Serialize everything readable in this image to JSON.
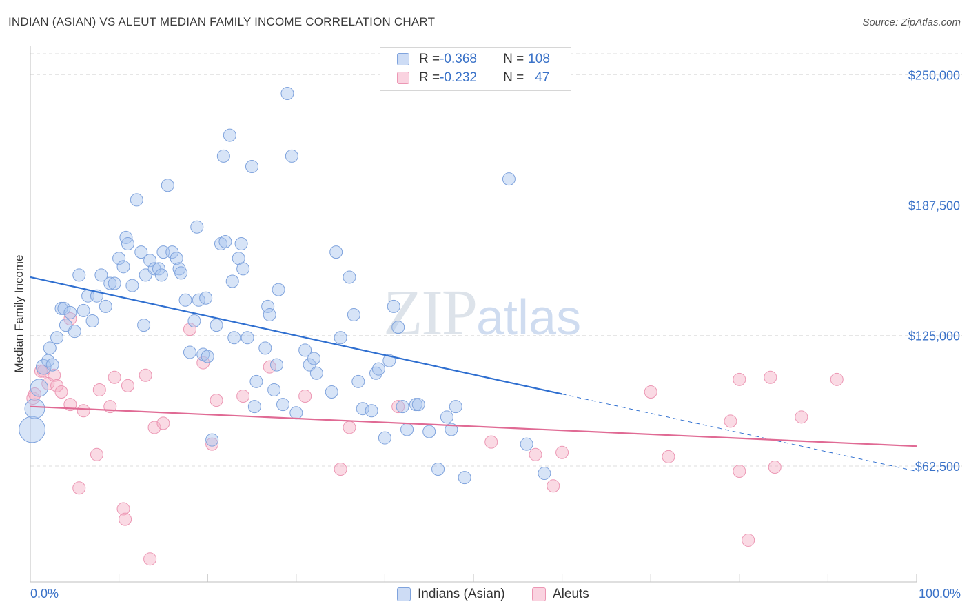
{
  "title": "INDIAN (ASIAN) VS ALEUT MEDIAN FAMILY INCOME CORRELATION CHART",
  "source": "Source: ZipAtlas.com",
  "watermark": {
    "main": "ZIP",
    "sub": "atlas"
  },
  "legend": {
    "rows": [
      {
        "r_label": "R = ",
        "r_value": "-0.368",
        "n_label": "N = ",
        "n_value": "108",
        "color": "#a7c4ee"
      },
      {
        "r_label": "R = ",
        "r_value": "-0.232",
        "n_label": "N = ",
        "n_value": "47",
        "color": "#f4aec4"
      }
    ]
  },
  "bottom_legend": [
    {
      "label": "Indians (Asian)",
      "color": "#a7c4ee"
    },
    {
      "label": "Aleuts",
      "color": "#f4aec4"
    }
  ],
  "colors": {
    "blue": "#3a72c8",
    "pink": "#e06a94",
    "blue_fill": "#a7c4ee",
    "pink_fill": "#f4aec4",
    "grid": "#dddddd"
  },
  "chart_data": {
    "type": "scatter",
    "title": "INDIAN (ASIAN) VS ALEUT MEDIAN FAMILY INCOME CORRELATION CHART",
    "xlabel": "",
    "ylabel": "Median Family Income",
    "xlim": [
      0,
      100
    ],
    "ylim": [
      7000,
      260000
    ],
    "x_tick_labels": [
      "0.0%",
      "100.0%"
    ],
    "y_ticks": [
      62500,
      125000,
      187500,
      250000
    ],
    "y_tick_labels": [
      "$62,500",
      "$125,000",
      "$187,500",
      "$250,000"
    ],
    "grid": true,
    "series": [
      {
        "name": "Indians (Asian)",
        "color": "#3a72c8",
        "trend": {
          "x0": 0,
          "y0": 153000,
          "x1": 60,
          "y1": 97000,
          "dash_to_x": 100,
          "dash_to_y": 60000
        },
        "points": [
          [
            0.2,
            80000,
            2.1
          ],
          [
            0.5,
            90000,
            1.6
          ],
          [
            1,
            100000,
            1.4
          ],
          [
            1.5,
            110000,
            1.2
          ],
          [
            2,
            113000,
            1
          ],
          [
            2.2,
            119000,
            1
          ],
          [
            2.5,
            111000,
            1
          ],
          [
            3,
            124000,
            1
          ],
          [
            3.5,
            138000,
            1
          ],
          [
            3.8,
            138000,
            1
          ],
          [
            4,
            130000,
            1
          ],
          [
            4.5,
            136000,
            1
          ],
          [
            5,
            127000,
            1
          ],
          [
            5.5,
            154000,
            1
          ],
          [
            6,
            137000,
            1
          ],
          [
            6.5,
            144000,
            1
          ],
          [
            7,
            132000,
            1
          ],
          [
            7.5,
            144000,
            1
          ],
          [
            8,
            154000,
            1
          ],
          [
            8.5,
            139000,
            1
          ],
          [
            9,
            150000,
            1
          ],
          [
            9.5,
            150000,
            1
          ],
          [
            10,
            162000,
            1
          ],
          [
            10.5,
            158000,
            1
          ],
          [
            10.8,
            172000,
            1
          ],
          [
            11,
            169000,
            1
          ],
          [
            11.5,
            149000,
            1
          ],
          [
            12,
            190000,
            1
          ],
          [
            12.5,
            165000,
            1
          ],
          [
            12.8,
            130000,
            1
          ],
          [
            13,
            154000,
            1
          ],
          [
            13.5,
            161000,
            1
          ],
          [
            14,
            157000,
            1
          ],
          [
            14.5,
            157000,
            1
          ],
          [
            14.8,
            154000,
            1
          ],
          [
            15,
            165000,
            1
          ],
          [
            15.5,
            197000,
            1
          ],
          [
            16,
            165000,
            1
          ],
          [
            16.5,
            162000,
            1
          ],
          [
            16.8,
            157000,
            1
          ],
          [
            17,
            155000,
            1
          ],
          [
            17.5,
            142000,
            1
          ],
          [
            18,
            117000,
            1
          ],
          [
            18.5,
            132000,
            1
          ],
          [
            18.8,
            177000,
            1
          ],
          [
            19,
            142000,
            1
          ],
          [
            19.5,
            116000,
            1
          ],
          [
            19.8,
            143000,
            1
          ],
          [
            20,
            115000,
            1
          ],
          [
            20.5,
            75000,
            1
          ],
          [
            21,
            130000,
            1
          ],
          [
            21.5,
            169000,
            1
          ],
          [
            21.8,
            211000,
            1
          ],
          [
            22,
            170000,
            1
          ],
          [
            22.5,
            221000,
            1
          ],
          [
            22.8,
            151000,
            1
          ],
          [
            23,
            124000,
            1
          ],
          [
            23.5,
            162000,
            1
          ],
          [
            23.8,
            169000,
            1
          ],
          [
            24,
            157000,
            1
          ],
          [
            24.5,
            124000,
            1
          ],
          [
            25,
            206000,
            1
          ],
          [
            25.3,
            91000,
            1
          ],
          [
            25.5,
            103000,
            1
          ],
          [
            26.5,
            119000,
            1
          ],
          [
            26.8,
            139000,
            1
          ],
          [
            27,
            135000,
            1
          ],
          [
            27.5,
            99000,
            1
          ],
          [
            27.8,
            111000,
            1
          ],
          [
            28,
            147000,
            1
          ],
          [
            28.5,
            92000,
            1
          ],
          [
            29,
            241000,
            1
          ],
          [
            29.5,
            211000,
            1
          ],
          [
            30,
            88000,
            1
          ],
          [
            31,
            118000,
            1
          ],
          [
            31.5,
            111000,
            1
          ],
          [
            32,
            114000,
            1
          ],
          [
            32.3,
            107000,
            1
          ],
          [
            34,
            98000,
            1
          ],
          [
            34.5,
            165000,
            1
          ],
          [
            35,
            124000,
            1
          ],
          [
            36,
            153000,
            1
          ],
          [
            36.5,
            135000,
            1
          ],
          [
            37,
            103000,
            1
          ],
          [
            37.5,
            90000,
            1
          ],
          [
            38.5,
            89000,
            1
          ],
          [
            39,
            107000,
            1
          ],
          [
            39.3,
            109000,
            1
          ],
          [
            40,
            76000,
            1
          ],
          [
            40.5,
            113000,
            1
          ],
          [
            41,
            139000,
            1
          ],
          [
            41.5,
            129000,
            1
          ],
          [
            42,
            91000,
            1
          ],
          [
            42.5,
            80000,
            1
          ],
          [
            43.5,
            92000,
            1
          ],
          [
            43.8,
            92000,
            1
          ],
          [
            45,
            79000,
            1
          ],
          [
            46,
            61000,
            1
          ],
          [
            47,
            86000,
            1
          ],
          [
            47.5,
            80000,
            1
          ],
          [
            48,
            91000,
            1
          ],
          [
            49,
            57000,
            1
          ],
          [
            54,
            200000,
            1
          ],
          [
            56,
            73000,
            1
          ],
          [
            58,
            59000,
            1
          ]
        ]
      },
      {
        "name": "Aleuts",
        "color": "#e06a94",
        "trend": {
          "x0": 0,
          "y0": 91000,
          "x1": 100,
          "y1": 72000
        },
        "points": [
          [
            0.3,
            95000,
            1
          ],
          [
            0.5,
            97000,
            1
          ],
          [
            1.2,
            108000,
            1
          ],
          [
            1.5,
            108000,
            1
          ],
          [
            2,
            102000,
            1
          ],
          [
            2.7,
            106000,
            1
          ],
          [
            3,
            101000,
            1
          ],
          [
            3.5,
            98000,
            1
          ],
          [
            4.5,
            133000,
            1
          ],
          [
            4.5,
            92000,
            1
          ],
          [
            5.5,
            52000,
            1
          ],
          [
            6,
            89000,
            1
          ],
          [
            7.5,
            68000,
            1
          ],
          [
            7.8,
            99000,
            1
          ],
          [
            9,
            91000,
            1
          ],
          [
            9.5,
            105000,
            1
          ],
          [
            10.5,
            42000,
            1
          ],
          [
            10.7,
            37000,
            1
          ],
          [
            11,
            101000,
            1
          ],
          [
            13,
            106000,
            1
          ],
          [
            13.5,
            18000,
            1
          ],
          [
            14,
            81000,
            1
          ],
          [
            15,
            83000,
            1
          ],
          [
            18,
            128000,
            1
          ],
          [
            19.5,
            112000,
            1
          ],
          [
            20.5,
            73000,
            1
          ],
          [
            21,
            94000,
            1
          ],
          [
            24,
            96000,
            1
          ],
          [
            27,
            110000,
            1
          ],
          [
            31,
            96000,
            1
          ],
          [
            35,
            61000,
            1
          ],
          [
            36,
            81000,
            1
          ],
          [
            41.5,
            91000,
            1
          ],
          [
            52,
            74000,
            1
          ],
          [
            57,
            68000,
            1
          ],
          [
            60,
            69000,
            1
          ],
          [
            59,
            53000,
            1
          ],
          [
            70,
            98000,
            1
          ],
          [
            72,
            67000,
            1
          ],
          [
            79,
            84000,
            1
          ],
          [
            80,
            60000,
            1
          ],
          [
            80,
            104000,
            1
          ],
          [
            81,
            27000,
            1
          ],
          [
            83.5,
            105000,
            1
          ],
          [
            84,
            62000,
            1
          ],
          [
            87,
            86000,
            1
          ],
          [
            91,
            104000,
            1
          ]
        ]
      }
    ]
  }
}
